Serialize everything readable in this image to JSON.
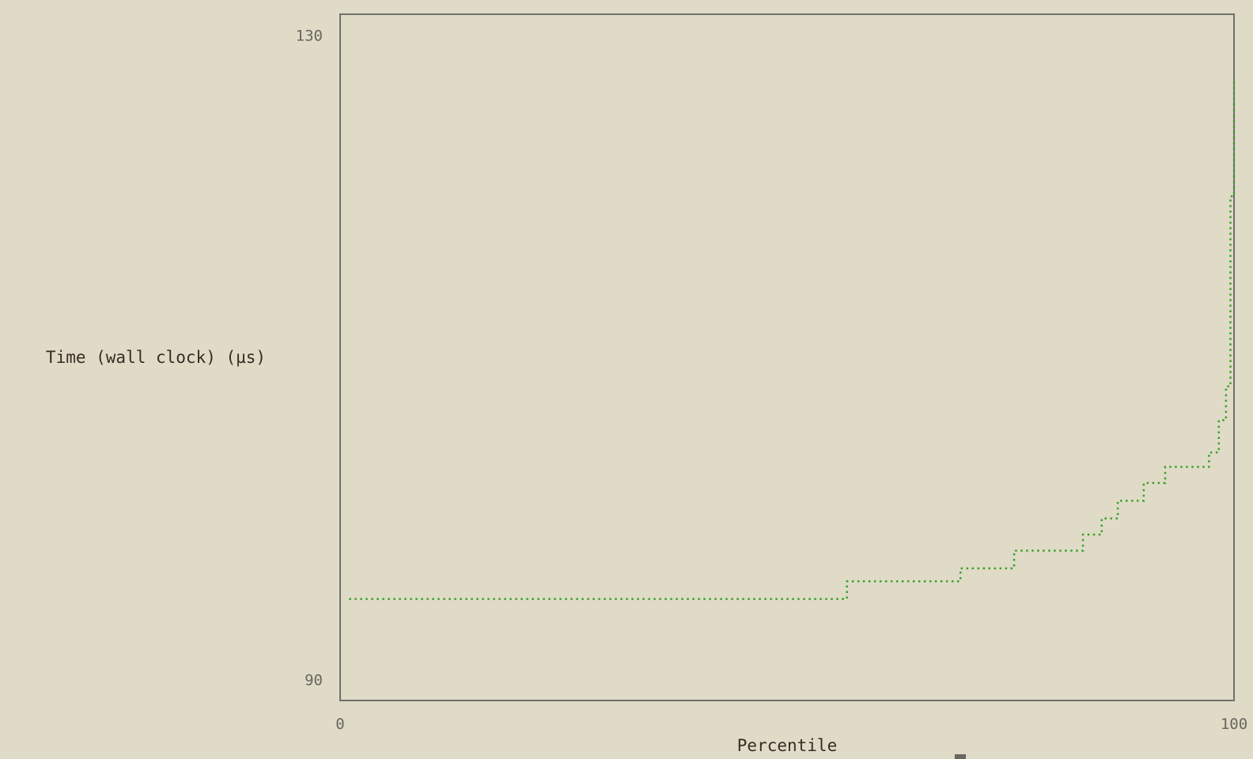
{
  "chart_data": {
    "type": "line",
    "title": "",
    "xlabel": "Percentile",
    "ylabel": "Time (wall clock) (µs)",
    "xlim": [
      0,
      100
    ],
    "ylim": [
      88.7,
      131.3
    ],
    "x_ticks": [
      "0",
      "100"
    ],
    "y_ticks": [
      "90",
      "130"
    ],
    "grid": false,
    "line_color": "#3aa02e",
    "frame_color": "#6f6f6f",
    "series": [
      {
        "step": true,
        "x": [
          1,
          56.7,
          69.4,
          75.4,
          83.1,
          85.2,
          87.0,
          89.9,
          92.3,
          97.2,
          98.3,
          99.1,
          99.6,
          100
        ],
        "y": [
          95.0,
          96.1,
          96.9,
          98.0,
          99.0,
          100.0,
          101.1,
          102.2,
          103.2,
          104.1,
          106.1,
          108.2,
          120.0,
          127.4
        ]
      }
    ]
  }
}
